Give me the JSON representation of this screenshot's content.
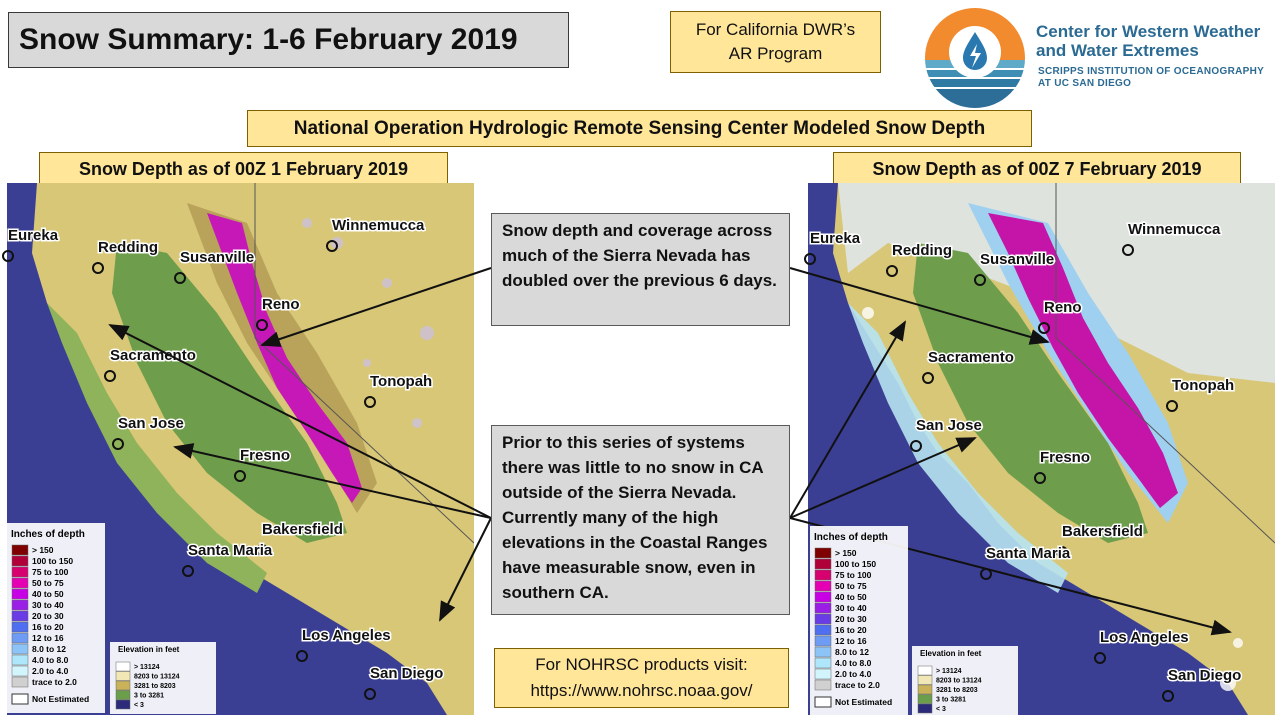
{
  "title": "Snow Summary: 1-6 February 2019",
  "sponsor": {
    "line1": "For California DWR’s",
    "line2": "AR Program"
  },
  "org": {
    "name_line1": "Center for Western Weather",
    "name_line2": "and Water Extremes",
    "sub_line1": "SCRIPPS INSTITUTION OF OCEANOGRAPHY",
    "sub_line2": "AT UC SAN DIEGO"
  },
  "center_title": "National Operation Hydrologic Remote Sensing Center Modeled Snow Depth",
  "left_map": {
    "title": "Snow Depth as of 00Z 1 February 2019"
  },
  "right_map": {
    "title": "Snow Depth as of  00Z 7 February 2019"
  },
  "callout_top": "Snow depth and coverage across much of the Sierra Nevada has doubled over the previous 6 days.",
  "callout_bottom": "Prior to this series of systems there was little to no snow in CA outside of the Sierra Nevada. Currently many of the high elevations in the Coastal Ranges have measurable snow, even in southern CA.",
  "footer": {
    "line1": "For NOHRSC products visit:",
    "line2": "https://www.nohrsc.noaa.gov/"
  },
  "cities": [
    "Eureka",
    "Redding",
    "Susanville",
    "Winnemucca",
    "Reno",
    "Sacramento",
    "Tonopah",
    "San Jose",
    "Fresno",
    "Bakersfield",
    "Santa Maria",
    "Los Angeles",
    "San Diego"
  ],
  "depth_legend": {
    "title": "Inches of depth",
    "rows": [
      {
        "label": "> 150",
        "color": "#7f0000"
      },
      {
        "label": "100  to  150",
        "color": "#b0003a"
      },
      {
        "label": "75  to  100",
        "color": "#d6006e"
      },
      {
        "label": "50  to  75",
        "color": "#e600b4"
      },
      {
        "label": "40  to  50",
        "color": "#c800e6"
      },
      {
        "label": "30  to  40",
        "color": "#9a1ee6"
      },
      {
        "label": "20  to  30",
        "color": "#6a3ce6"
      },
      {
        "label": "16  to  20",
        "color": "#4f6ef0"
      },
      {
        "label": "12  to  16",
        "color": "#6e9cf5"
      },
      {
        "label": "8.0  to  12",
        "color": "#8cc4f8"
      },
      {
        "label": "4.0  to  8.0",
        "color": "#aee6fb"
      },
      {
        "label": "2.0  to  4.0",
        "color": "#d2f5fd"
      },
      {
        "label": "trace to  2.0",
        "color": "#d0d0d0"
      }
    ],
    "not_estimated": "Not Estimated"
  },
  "elevation_legend": {
    "title": "Elevation in feet",
    "rows": [
      {
        "label": ">  13124",
        "color": "#ffffff"
      },
      {
        "label": "8203  to  13124",
        "color": "#f1e6b5"
      },
      {
        "label": "3281  to  8203",
        "color": "#c9b25a"
      },
      {
        "label": "3  to  3281",
        "color": "#6b9e4a"
      },
      {
        "label": "<  3",
        "color": "#2b2b7a"
      }
    ]
  },
  "colors": {
    "ocean": "#3b3f93",
    "valley": "#6e9e4c",
    "highland": "#e8d98f",
    "mountain": "#b9a35a",
    "snow": "#c800c8"
  }
}
